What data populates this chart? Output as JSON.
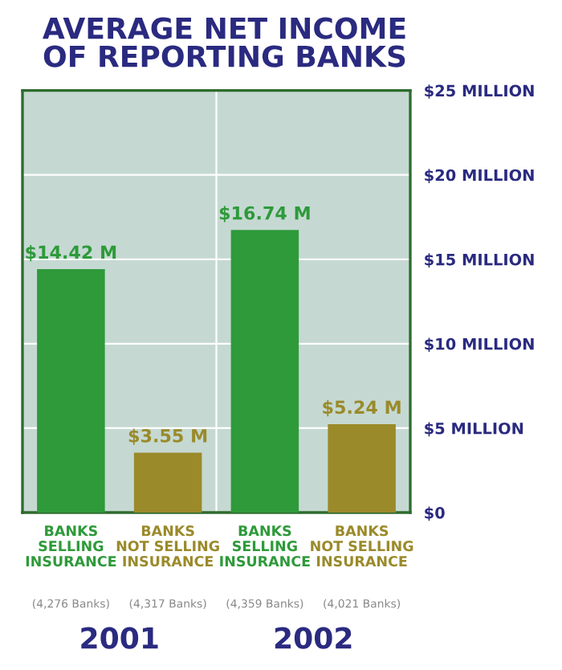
{
  "chart_data": {
    "type": "bar",
    "title": "AVERAGE NET INCOME\nOF REPORTING BANKS",
    "categories": [
      "BANKS\nSELLING\nINSURANCE\n(4,276 Banks)",
      "BANKS\nNOT SELLING\nINSURANCE\n(4,317 Banks)",
      "BANKS\nSELLING\nINSURANCE\n(4,359 Banks)",
      "BANKS\nNOT SELLING\nINSURANCE\n(4,021 Banks)"
    ],
    "values": [
      14.42,
      3.55,
      16.74,
      5.24
    ],
    "colors": [
      "#2e9a3a",
      "#9a8a2a",
      "#2e9a3a",
      "#9a8a2a"
    ],
    "value_labels": [
      "$14.42 M",
      "$3.55 M",
      "$16.74 M",
      "$5.24 M"
    ],
    "ylim": [
      0,
      25
    ],
    "yticks": [
      {
        "value": 0,
        "label": "$0"
      },
      {
        "value": 5,
        "label": "$5 MILLION"
      },
      {
        "value": 10,
        "label": "$10 MILLION"
      },
      {
        "value": 15,
        "label": "$15 MILLION"
      },
      {
        "value": 20,
        "label": "$20 MILLION"
      },
      {
        "value": 25,
        "label": "$25 MILLION"
      }
    ],
    "grid": "y",
    "annotations": [
      "2001",
      "2002"
    ]
  }
}
